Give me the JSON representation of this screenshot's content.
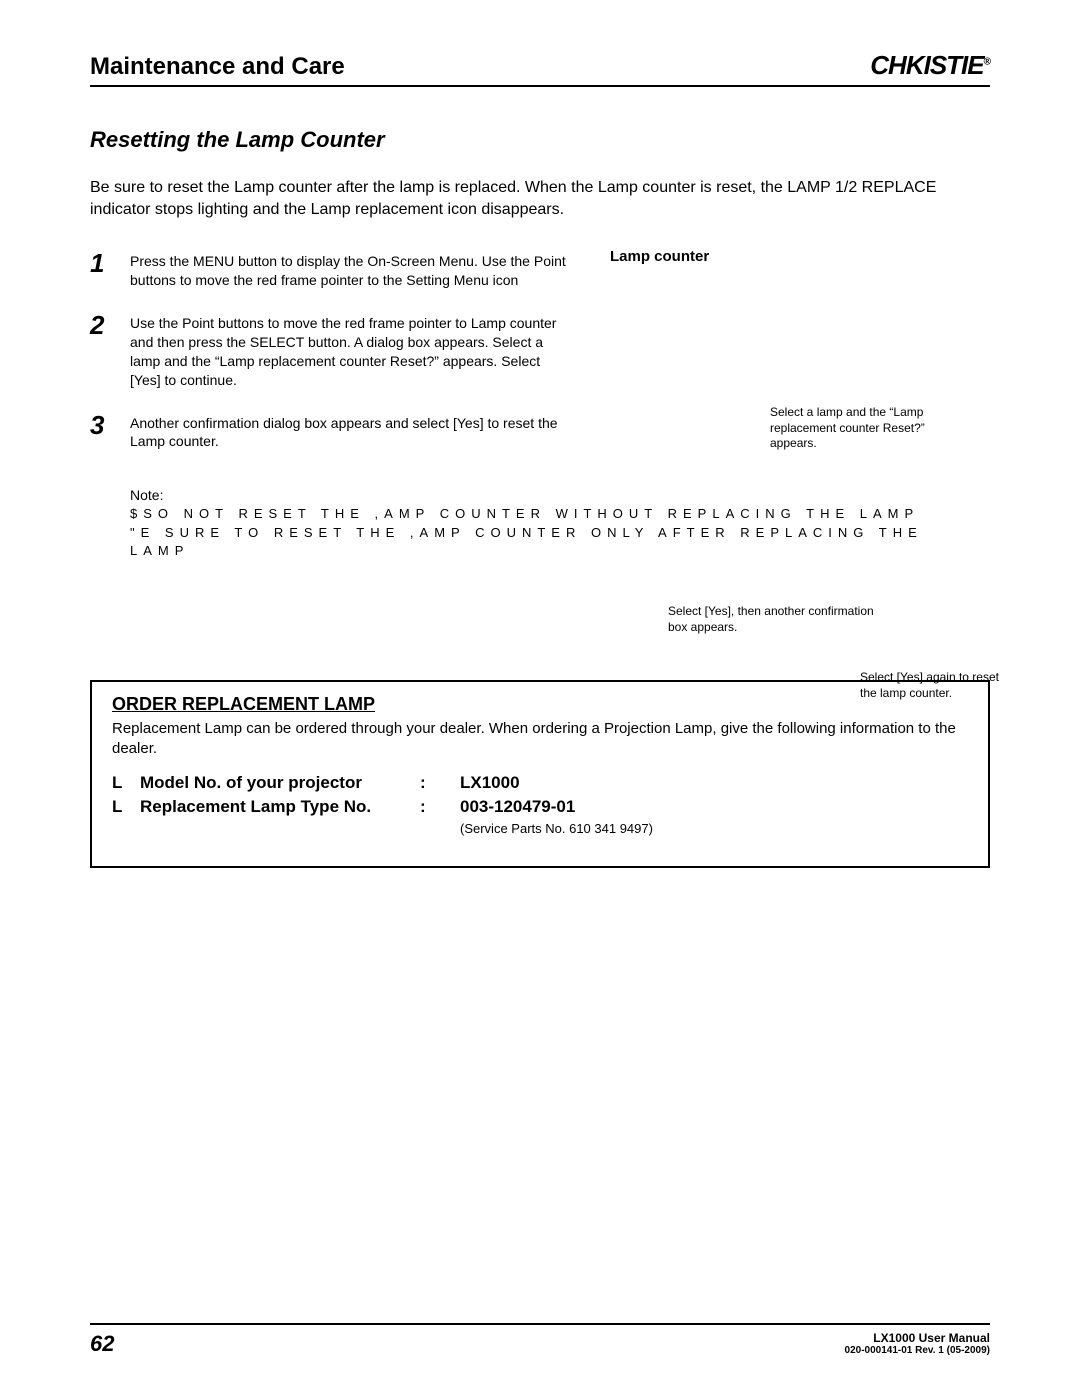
{
  "header": {
    "title": "Maintenance and Care",
    "brand": "CHKISTIE",
    "reg": "®"
  },
  "section_title": "Resetting the Lamp Counter",
  "intro": "Be sure to reset the Lamp counter after the lamp is replaced. When the Lamp counter is reset, the LAMP 1/2 REPLACE indicator stops lighting and the Lamp replacement icon disappears.",
  "steps": [
    {
      "num": "1",
      "text": "Press the MENU button to display the On-Screen Menu. Use the Point        buttons to move the red frame pointer to the Setting Menu icon"
    },
    {
      "num": "2",
      "text": "Use the Point        buttons to move the red frame pointer to Lamp counter and then press the SELECT button. A dialog box appears. Select a lamp and the “Lamp replacement counter Reset?” appears. Select [Yes] to continue."
    },
    {
      "num": "3",
      "text": "Another confirmation dialog box appears and select [Yes] to reset the Lamp counter."
    }
  ],
  "right": {
    "label": "Lamp counter",
    "caption1": "Select a lamp and the “Lamp replacement counter Reset?” appears.",
    "caption2": "Select [Yes], then another confirmation box appears.",
    "caption3": "Select [Yes] again to reset the lamp counter."
  },
  "note": {
    "label": "Note:",
    "line1": "$sO NOT RESET THE ,AMP COUNTER WITHOUT REPLACING THE LAMP",
    "line2": "\"E SURE TO RESET THE ,AMP COUNTER ONLY AFTER REPLACING THE LAMP"
  },
  "order": {
    "heading": "ORDER REPLACEMENT LAMP",
    "text": "Replacement Lamp can be ordered through your dealer.  When ordering a Projection Lamp, give the following information to the dealer.",
    "rows": [
      {
        "bullet": "L",
        "label": "Model No. of your projector",
        "value": "LX1000"
      },
      {
        "bullet": "L",
        "label": "Replacement Lamp Type No.",
        "value": "003-120479-01"
      }
    ],
    "service_parts": "(Service Parts No. 610 341 9497)"
  },
  "footer": {
    "page": "62",
    "manual": "LX1000 User Manual",
    "rev": "020-000141-01  Rev. 1   (05-2009)"
  }
}
